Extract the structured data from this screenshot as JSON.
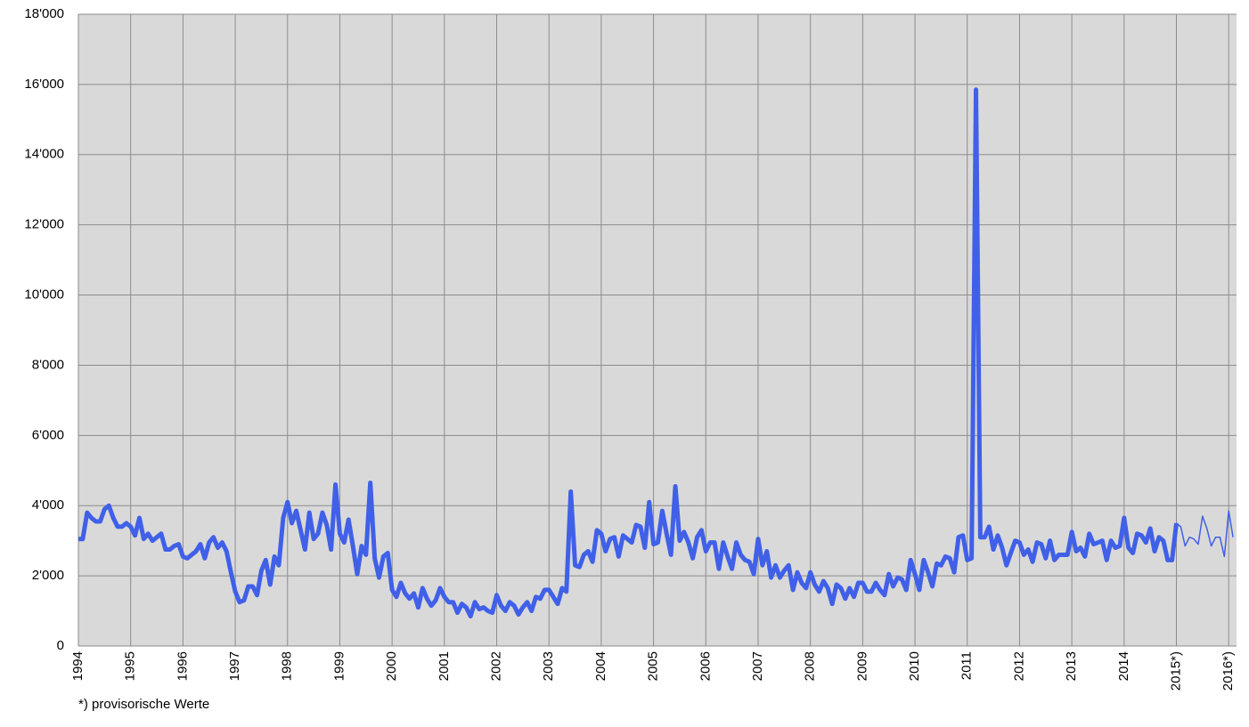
{
  "chart_data": {
    "type": "line",
    "footnote": "*) provisorische Werte",
    "grid": true,
    "background": "#d9d9d9",
    "xlim": [
      1994,
      2016.15
    ],
    "ylim": [
      0,
      18000
    ],
    "xticks": [
      1994,
      1995,
      1996,
      1997,
      1998,
      1999,
      2000,
      2001,
      2002,
      2003,
      2004,
      2005,
      2006,
      2007,
      2008,
      2009,
      2010,
      2011,
      2012,
      2013,
      2014,
      {
        "value": 2015,
        "label": "2015*)"
      },
      {
        "value": 2016,
        "label": "2016*)"
      }
    ],
    "yticks": [
      0,
      {
        "value": 2000,
        "label": "2'000"
      },
      {
        "value": 4000,
        "label": "4'000"
      },
      {
        "value": 6000,
        "label": "6'000"
      },
      {
        "value": 8000,
        "label": "8'000"
      },
      {
        "value": 10000,
        "label": "10'000"
      },
      {
        "value": 12000,
        "label": "12'000"
      },
      {
        "value": 14000,
        "label": "14'000"
      },
      {
        "value": 16000,
        "label": "16'000"
      },
      {
        "value": 18000,
        "label": "18'000"
      }
    ],
    "x": [
      1994,
      1994.083,
      1994.167,
      1994.25,
      1994.333,
      1994.417,
      1994.5,
      1994.583,
      1994.667,
      1994.75,
      1994.833,
      1994.917,
      1995,
      1995.083,
      1995.167,
      1995.25,
      1995.333,
      1995.417,
      1995.5,
      1995.583,
      1995.667,
      1995.75,
      1995.833,
      1995.917,
      1996,
      1996.083,
      1996.167,
      1996.25,
      1996.333,
      1996.417,
      1996.5,
      1996.583,
      1996.667,
      1996.75,
      1996.833,
      1996.917,
      1997,
      1997.083,
      1997.167,
      1997.25,
      1997.333,
      1997.417,
      1997.5,
      1997.583,
      1997.667,
      1997.75,
      1997.833,
      1997.917,
      1998,
      1998.083,
      1998.167,
      1998.25,
      1998.333,
      1998.417,
      1998.5,
      1998.583,
      1998.667,
      1998.75,
      1998.833,
      1998.917,
      1999,
      1999.083,
      1999.167,
      1999.25,
      1999.333,
      1999.417,
      1999.5,
      1999.583,
      1999.667,
      1999.75,
      1999.833,
      1999.917,
      2000,
      2000.083,
      2000.167,
      2000.25,
      2000.333,
      2000.417,
      2000.5,
      2000.583,
      2000.667,
      2000.75,
      2000.833,
      2000.917,
      2001,
      2001.083,
      2001.167,
      2001.25,
      2001.333,
      2001.417,
      2001.5,
      2001.583,
      2001.667,
      2001.75,
      2001.833,
      2001.917,
      2002,
      2002.083,
      2002.167,
      2002.25,
      2002.333,
      2002.417,
      2002.5,
      2002.583,
      2002.667,
      2002.75,
      2002.833,
      2002.917,
      2003,
      2003.083,
      2003.167,
      2003.25,
      2003.333,
      2003.417,
      2003.5,
      2003.583,
      2003.667,
      2003.75,
      2003.833,
      2003.917,
      2004,
      2004.083,
      2004.167,
      2004.25,
      2004.333,
      2004.417,
      2004.5,
      2004.583,
      2004.667,
      2004.75,
      2004.833,
      2004.917,
      2005,
      2005.083,
      2005.167,
      2005.25,
      2005.333,
      2005.417,
      2005.5,
      2005.583,
      2005.667,
      2005.75,
      2005.833,
      2005.917,
      2006,
      2006.083,
      2006.167,
      2006.25,
      2006.333,
      2006.417,
      2006.5,
      2006.583,
      2006.667,
      2006.75,
      2006.833,
      2006.917,
      2007,
      2007.083,
      2007.167,
      2007.25,
      2007.333,
      2007.417,
      2007.5,
      2007.583,
      2007.667,
      2007.75,
      2007.833,
      2007.917,
      2008,
      2008.083,
      2008.167,
      2008.25,
      2008.333,
      2008.417,
      2008.5,
      2008.583,
      2008.667,
      2008.75,
      2008.833,
      2008.917,
      2009,
      2009.083,
      2009.167,
      2009.25,
      2009.333,
      2009.417,
      2009.5,
      2009.583,
      2009.667,
      2009.75,
      2009.833,
      2009.917,
      2010,
      2010.083,
      2010.167,
      2010.25,
      2010.333,
      2010.417,
      2010.5,
      2010.583,
      2010.667,
      2010.75,
      2010.833,
      2010.917,
      2011,
      2011.083,
      2011.167,
      2011.25,
      2011.333,
      2011.417,
      2011.5,
      2011.583,
      2011.667,
      2011.75,
      2011.833,
      2011.917,
      2012,
      2012.083,
      2012.167,
      2012.25,
      2012.333,
      2012.417,
      2012.5,
      2012.583,
      2012.667,
      2012.75,
      2012.833,
      2012.917,
      2013,
      2013.083,
      2013.167,
      2013.25,
      2013.333,
      2013.417,
      2013.5,
      2013.583,
      2013.667,
      2013.75,
      2013.833,
      2013.917,
      2014,
      2014.083,
      2014.167,
      2014.25,
      2014.333,
      2014.417,
      2014.5,
      2014.583,
      2014.667,
      2014.75,
      2014.833,
      2014.917,
      2015,
      2015.083,
      2015.167,
      2015.25,
      2015.333,
      2015.417,
      2015.5,
      2015.583,
      2015.667,
      2015.75,
      2015.833,
      2015.917,
      2016,
      2016.083
    ],
    "series": [
      {
        "color": "#4060e8",
        "width": 5,
        "values": [
          3050,
          3050,
          3800,
          3650,
          3550,
          3550,
          3900,
          4000,
          3650,
          3400,
          3400,
          3500,
          3400,
          3150,
          3650,
          3050,
          3200,
          3000,
          3100,
          3200,
          2750,
          2750,
          2850,
          2900,
          2550,
          2500,
          2600,
          2700,
          2900,
          2500,
          2950,
          3100,
          2800,
          2950,
          2700,
          2100,
          1550,
          1250,
          1300,
          1700,
          1700,
          1450,
          2150,
          2450,
          1750,
          2550,
          2300,
          3650,
          4100,
          3500,
          3850,
          3300,
          2750,
          3800,
          3050,
          3200,
          3800,
          3450,
          2750,
          4600,
          3200,
          2950,
          3600,
          2850,
          2050,
          2850,
          2600,
          4650,
          2500,
          1950,
          2550,
          2650,
          1600,
          1400,
          1800,
          1500,
          1350,
          1500,
          1100,
          1650,
          1350,
          1150,
          1300,
          1650,
          1400,
          1250,
          1250,
          950,
          1200,
          1100,
          850,
          1250,
          1050,
          1100,
          1000,
          950,
          1450,
          1150,
          1000,
          1250,
          1150,
          900,
          1100,
          1250,
          1000,
          1400,
          1350,
          1600,
          1600,
          1400,
          1200,
          1650,
          1550,
          4400,
          2300,
          2250,
          2600,
          2700,
          2400,
          3300,
          3200,
          2700,
          3050,
          3100,
          2550,
          3150,
          3050,
          2950,
          3450,
          3400,
          2800,
          4100,
          2900,
          2950,
          3850,
          3200,
          2600,
          4550,
          3000,
          3250,
          2950,
          2500,
          3100,
          3300,
          2700,
          2950,
          2950,
          2200,
          2950,
          2550,
          2200,
          2950,
          2600,
          2450,
          2400,
          2050,
          3050,
          2300,
          2700,
          1950,
          2300,
          1950,
          2150,
          2300,
          1600,
          2100,
          1800,
          1650,
          2100,
          1750,
          1550,
          1850,
          1650,
          1200,
          1750,
          1650,
          1350,
          1650,
          1400,
          1800,
          1800,
          1550,
          1550,
          1800,
          1600,
          1450,
          2050,
          1700,
          1950,
          1900,
          1600,
          2450,
          2050,
          1600,
          2450,
          2100,
          1700,
          2350,
          2300,
          2550,
          2500,
          2100,
          3100,
          3150,
          2450,
          2500,
          15850,
          3100,
          3100,
          3400,
          2750,
          3150,
          2800,
          2300,
          2650,
          3000,
          2950,
          2600,
          2750,
          2400,
          2950,
          2900,
          2500,
          3000,
          2450,
          2600,
          2600,
          2600,
          3250,
          2700,
          2800,
          2550,
          3200,
          2900,
          2950,
          3000,
          2450,
          3000,
          2800,
          2850,
          3650,
          2800,
          2650,
          3200,
          3150,
          2950,
          3350,
          2700,
          3100,
          3000,
          2450,
          2450,
          3500,
          null,
          null,
          null,
          null,
          null,
          null,
          null,
          null,
          null,
          null,
          null,
          null,
          null
        ]
      },
      {
        "color": "#4060e8",
        "width": 1.5,
        "values": [
          null,
          null,
          null,
          null,
          null,
          null,
          null,
          null,
          null,
          null,
          null,
          null,
          null,
          null,
          null,
          null,
          null,
          null,
          null,
          null,
          null,
          null,
          null,
          null,
          null,
          null,
          null,
          null,
          null,
          null,
          null,
          null,
          null,
          null,
          null,
          null,
          null,
          null,
          null,
          null,
          null,
          null,
          null,
          null,
          null,
          null,
          null,
          null,
          null,
          null,
          null,
          null,
          null,
          null,
          null,
          null,
          null,
          null,
          null,
          null,
          null,
          null,
          null,
          null,
          null,
          null,
          null,
          null,
          null,
          null,
          null,
          null,
          null,
          null,
          null,
          null,
          null,
          null,
          null,
          null,
          null,
          null,
          null,
          null,
          null,
          null,
          null,
          null,
          null,
          null,
          null,
          null,
          null,
          null,
          null,
          null,
          null,
          null,
          null,
          null,
          null,
          null,
          null,
          null,
          null,
          null,
          null,
          null,
          null,
          null,
          null,
          null,
          null,
          null,
          null,
          null,
          null,
          null,
          null,
          null,
          null,
          null,
          null,
          null,
          null,
          null,
          null,
          null,
          null,
          null,
          null,
          null,
          null,
          null,
          null,
          null,
          null,
          null,
          null,
          null,
          null,
          null,
          null,
          null,
          null,
          null,
          null,
          null,
          null,
          null,
          null,
          null,
          null,
          null,
          null,
          null,
          null,
          null,
          null,
          null,
          null,
          null,
          null,
          null,
          null,
          null,
          null,
          null,
          null,
          null,
          null,
          null,
          null,
          null,
          null,
          null,
          null,
          null,
          null,
          null,
          null,
          null,
          null,
          null,
          null,
          null,
          null,
          null,
          null,
          null,
          null,
          null,
          null,
          null,
          null,
          null,
          null,
          null,
          null,
          null,
          null,
          null,
          null,
          null,
          null,
          null,
          null,
          null,
          null,
          null,
          null,
          null,
          null,
          null,
          null,
          null,
          null,
          null,
          null,
          null,
          null,
          null,
          null,
          null,
          null,
          null,
          null,
          null,
          null,
          null,
          null,
          null,
          null,
          null,
          null,
          null,
          null,
          null,
          null,
          null,
          null,
          null,
          null,
          null,
          null,
          null,
          null,
          null,
          null,
          null,
          null,
          null,
          3500,
          3400,
          2850,
          3100,
          3050,
          2900,
          3700,
          3350,
          2850,
          3100,
          3100,
          2550,
          3850,
          3100
        ]
      }
    ]
  }
}
